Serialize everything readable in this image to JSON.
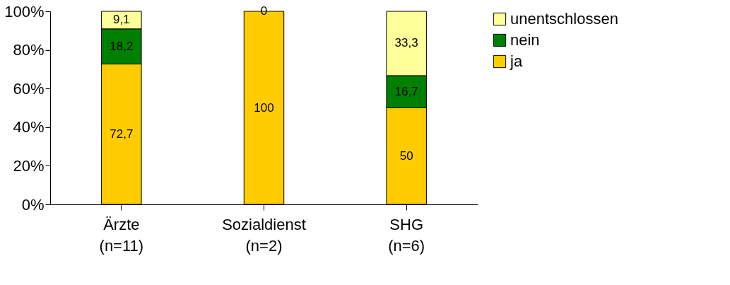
{
  "chart_data": {
    "type": "bar",
    "stacked": true,
    "categories": [
      "Ärzte\n(n=11)",
      "Sozialdienst\n(n=2)",
      "SHG\n(n=6)"
    ],
    "series": [
      {
        "name": "ja",
        "color": "#ffcc00",
        "values": [
          72.7,
          100,
          50
        ],
        "value_labels": [
          "72,7",
          "100",
          "50"
        ]
      },
      {
        "name": "nein",
        "color": "#008000",
        "values": [
          18.2,
          0,
          16.7
        ],
        "value_labels": [
          "18,2",
          null,
          "16,7"
        ]
      },
      {
        "name": "unentschlossen",
        "color": "#ffff99",
        "values": [
          9.1,
          0,
          33.3
        ],
        "value_labels": [
          "9,1",
          "0",
          "33,3"
        ]
      }
    ],
    "ylim": [
      0,
      100
    ],
    "yticks": [
      {
        "value": 0,
        "label": "0%"
      },
      {
        "value": 20,
        "label": "20%"
      },
      {
        "value": 40,
        "label": "40%"
      },
      {
        "value": 60,
        "label": "60%"
      },
      {
        "value": 80,
        "label": "80%"
      },
      {
        "value": 100,
        "label": "100%"
      }
    ],
    "grid": false,
    "legend": "right"
  }
}
